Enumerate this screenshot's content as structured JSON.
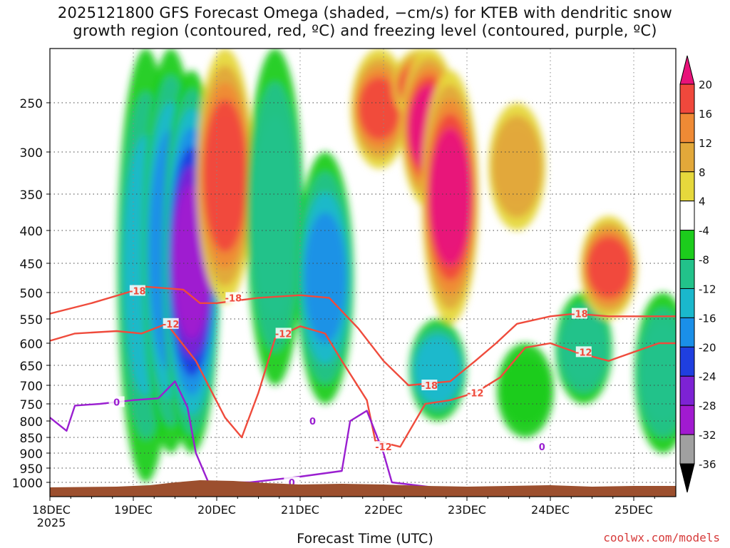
{
  "title_line1": "2025121800 GFS Forecast Omega (shaded, −cm/s) for KTEB with dendritic snow",
  "title_line2": "growth region (contoured, red, ºC) and freezing level (contoured, purple, ºC)",
  "credit": "coolwx.com/models",
  "chart_data": {
    "type": "heatmap",
    "title": "2025121800 GFS Forecast Omega (shaded, −cm/s) for KTEB with dendritic snow growth region (contoured, red, ºC) and freezing level (contoured, purple, ºC)",
    "xlabel": "Forecast Time (UTC)",
    "ylabel": "",
    "x_start_note": "2025",
    "x_ticks": [
      "18DEC",
      "19DEC",
      "20DEC",
      "21DEC",
      "22DEC",
      "23DEC",
      "24DEC",
      "25DEC"
    ],
    "x_range_days": [
      0,
      7.5
    ],
    "y_ticks": [
      250,
      300,
      350,
      400,
      450,
      500,
      550,
      600,
      650,
      700,
      750,
      800,
      850,
      900,
      950,
      1000
    ],
    "y_range_hpa": [
      200,
      1010
    ],
    "colorbar": {
      "labels": [
        "20",
        "16",
        "12",
        "8",
        "4",
        "-4",
        "-8",
        "-12",
        "-16",
        "-20",
        "-24",
        "-28",
        "-32",
        "-36"
      ],
      "bins": [
        {
          "range": ">20",
          "color": "#e8127a"
        },
        {
          "range": "16 to 20",
          "color": "#f0483c"
        },
        {
          "range": "12 to 16",
          "color": "#ef8a35"
        },
        {
          "range": "8 to 12",
          "color": "#e2a83a"
        },
        {
          "range": "4 to 8",
          "color": "#e6d83c"
        },
        {
          "range": "-4 to 4",
          "color": "#ffffff"
        },
        {
          "range": "-8 to -4",
          "color": "#1ccc1c"
        },
        {
          "range": "-12 to -8",
          "color": "#22c28a"
        },
        {
          "range": "-16 to -12",
          "color": "#1ab8cc"
        },
        {
          "range": "-20 to -16",
          "color": "#1a8fe8"
        },
        {
          "range": "-24 to -20",
          "color": "#1f3fe0"
        },
        {
          "range": "-28 to -24",
          "color": "#7d22d4"
        },
        {
          "range": "-32 to -28",
          "color": "#a11ad0"
        },
        {
          "range": "-36 to -32",
          "color": "#a0a0a0"
        },
        {
          "range": "<-36",
          "color": "#000000"
        }
      ]
    },
    "omega_features": [
      {
        "time": 1.15,
        "p_top": 200,
        "p_bottom": 1000,
        "value": -12
      },
      {
        "time": 1.45,
        "p_top": 200,
        "p_bottom": 900,
        "value": -18
      },
      {
        "time": 1.7,
        "p_top": 220,
        "p_bottom": 900,
        "value": -28
      },
      {
        "time": 2.1,
        "p_top": 200,
        "p_bottom": 520,
        "value": 18
      },
      {
        "time": 2.7,
        "p_top": 200,
        "p_bottom": 700,
        "value": -10
      },
      {
        "time": 3.3,
        "p_top": 300,
        "p_bottom": 750,
        "value": -16
      },
      {
        "time": 3.95,
        "p_top": 200,
        "p_bottom": 320,
        "value": 16
      },
      {
        "time": 4.45,
        "p_top": 200,
        "p_bottom": 270,
        "value": 18
      },
      {
        "time": 4.55,
        "p_top": 200,
        "p_bottom": 370,
        "value": 22
      },
      {
        "time": 4.8,
        "p_top": 220,
        "p_bottom": 560,
        "value": 22
      },
      {
        "time": 4.65,
        "p_top": 550,
        "p_bottom": 800,
        "value": -14
      },
      {
        "time": 5.6,
        "p_top": 250,
        "p_bottom": 400,
        "value": 10
      },
      {
        "time": 5.7,
        "p_top": 600,
        "p_bottom": 850,
        "value": -6
      },
      {
        "time": 6.4,
        "p_top": 500,
        "p_bottom": 750,
        "value": -10
      },
      {
        "time": 6.7,
        "p_top": 380,
        "p_bottom": 550,
        "value": 18
      },
      {
        "time": 7.35,
        "p_top": 500,
        "p_bottom": 900,
        "value": -10
      }
    ],
    "series": [
      {
        "name": "-18 C isotherm (dendritic growth top)",
        "color": "#ef4b3c",
        "label": "-18",
        "points": [
          [
            0,
            540
          ],
          [
            0.5,
            520
          ],
          [
            1.0,
            497
          ],
          [
            1.15,
            490
          ],
          [
            1.6,
            495
          ],
          [
            1.8,
            520
          ],
          [
            2.0,
            520
          ],
          [
            2.5,
            510
          ],
          [
            3.0,
            505
          ],
          [
            3.35,
            510
          ],
          [
            3.7,
            570
          ],
          [
            4.0,
            640
          ],
          [
            4.3,
            700
          ],
          [
            4.8,
            690
          ],
          [
            5.1,
            640
          ],
          [
            5.35,
            600
          ],
          [
            5.6,
            560
          ],
          [
            6.0,
            545
          ],
          [
            6.3,
            540
          ],
          [
            6.7,
            545
          ],
          [
            7.0,
            545
          ],
          [
            7.5,
            545
          ]
        ]
      },
      {
        "name": "-12 C isotherm (dendritic growth bottom)",
        "color": "#ef4b3c",
        "label": "-12",
        "points": [
          [
            0,
            595
          ],
          [
            0.3,
            580
          ],
          [
            0.8,
            575
          ],
          [
            1.1,
            580
          ],
          [
            1.4,
            560
          ],
          [
            1.75,
            640
          ],
          [
            1.9,
            700
          ],
          [
            2.1,
            790
          ],
          [
            2.3,
            850
          ],
          [
            2.5,
            720
          ],
          [
            2.7,
            590
          ],
          [
            3.0,
            565
          ],
          [
            3.3,
            580
          ],
          [
            3.5,
            640
          ],
          [
            3.8,
            740
          ],
          [
            3.9,
            860
          ],
          [
            4.2,
            880
          ],
          [
            4.5,
            750
          ],
          [
            4.8,
            740
          ],
          [
            5.1,
            720
          ],
          [
            5.4,
            680
          ],
          [
            5.7,
            610
          ],
          [
            6.0,
            600
          ],
          [
            6.3,
            620
          ],
          [
            6.7,
            640
          ],
          [
            7.0,
            620
          ],
          [
            7.3,
            600
          ],
          [
            7.5,
            600
          ]
        ]
      },
      {
        "name": "0 C freezing level",
        "color": "#9a1fd0",
        "label": "0",
        "points": [
          [
            0,
            790
          ],
          [
            0.2,
            830
          ],
          [
            0.3,
            755
          ],
          [
            0.6,
            750
          ],
          [
            0.8,
            745
          ],
          [
            1.0,
            740
          ],
          [
            1.3,
            735
          ],
          [
            1.5,
            690
          ],
          [
            1.65,
            760
          ],
          [
            1.75,
            900
          ],
          [
            1.9,
            1000
          ],
          [
            2.4,
            1000
          ],
          [
            3.0,
            980
          ],
          [
            3.5,
            960
          ],
          [
            3.6,
            800
          ],
          [
            3.8,
            770
          ],
          [
            4.0,
            900
          ],
          [
            4.1,
            1000
          ],
          [
            4.8,
            1005
          ]
        ]
      }
    ],
    "contour_labels": [
      "-18",
      "-18",
      "-18",
      "-18",
      "-12",
      "-12",
      "-12",
      "-12",
      "-12",
      "0",
      "0",
      "0",
      "0"
    ],
    "surface_terrain": "brown ground fill near 1000 hPa"
  }
}
